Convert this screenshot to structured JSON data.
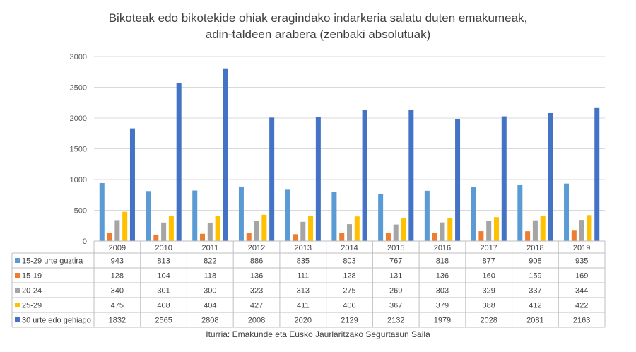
{
  "title": {
    "line1": "Bikoteak edo bikotekide ohiak eragindako indarkeria salatu duten emakumeak,",
    "line2": "adin-taldeen arabera (zenbaki absolutuak)"
  },
  "source": "Iturria: Emakunde eta Eusko Jaurlaritzako Segurtasun Saila",
  "chart_data": {
    "type": "bar",
    "categories": [
      "2009",
      "2010",
      "2011",
      "2012",
      "2013",
      "2014",
      "2015",
      "2016",
      "2017",
      "2018",
      "2019"
    ],
    "ylim": [
      0,
      3000
    ],
    "yticks": [
      "0",
      "500",
      "1000",
      "1500",
      "2000",
      "2500",
      "3000"
    ],
    "grid": true,
    "legend": "data-table",
    "series": [
      {
        "name": "15-29 urte guztira",
        "color": "#5b9bd5",
        "values": [
          943,
          813,
          822,
          886,
          835,
          803,
          767,
          818,
          877,
          908,
          935
        ]
      },
      {
        "name": "15-19",
        "color": "#ed7d31",
        "values": [
          128,
          104,
          118,
          136,
          111,
          128,
          131,
          136,
          160,
          159,
          169
        ]
      },
      {
        "name": "20-24",
        "color": "#a5a5a5",
        "values": [
          340,
          301,
          300,
          323,
          313,
          275,
          269,
          303,
          329,
          337,
          344
        ]
      },
      {
        "name": "25-29",
        "color": "#ffc000",
        "values": [
          475,
          408,
          404,
          427,
          411,
          400,
          367,
          379,
          388,
          412,
          422
        ]
      },
      {
        "name": "30 urte edo gehiago",
        "color": "#4472c4",
        "values": [
          1832,
          2565,
          2808,
          2008,
          2020,
          2129,
          2132,
          1979,
          2028,
          2081,
          2163
        ]
      }
    ]
  }
}
